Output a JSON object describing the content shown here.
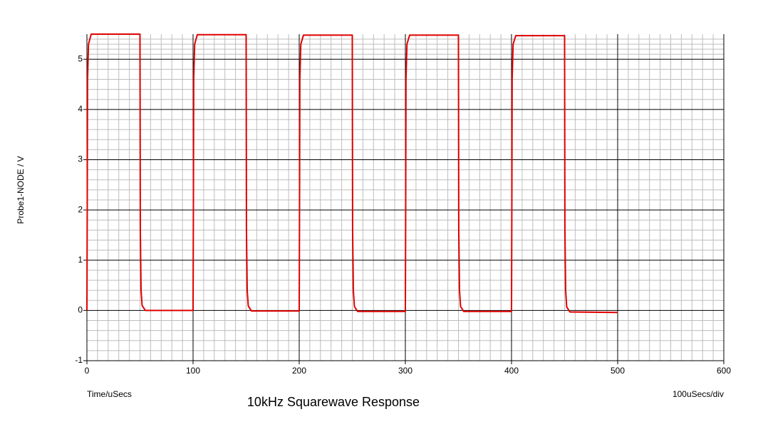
{
  "chart_data": {
    "type": "line",
    "title": "10kHz Squarewave Response",
    "y_label": "Probe1-NODE / V",
    "x_label": "Time/uSecs",
    "x_scale_label": "100uSecs/div",
    "xlim": [
      0,
      600
    ],
    "xticks": [
      0,
      100,
      200,
      300,
      400,
      500,
      600
    ],
    "ylim": [
      -1,
      5.5
    ],
    "yticks": [
      -1,
      0,
      1,
      2,
      3,
      4,
      5
    ],
    "grid": true,
    "x": [
      0,
      0.3,
      0.6,
      1.5,
      4,
      50,
      50.3,
      51,
      52,
      55,
      100,
      100.3,
      100.6,
      101.5,
      104,
      150,
      150.3,
      151,
      152,
      155,
      200,
      200.3,
      200.6,
      201.5,
      204,
      250,
      250.3,
      251,
      252,
      255,
      300,
      300.3,
      300.6,
      301.5,
      304,
      350,
      350.3,
      351,
      352,
      355,
      400,
      400.3,
      400.6,
      401.5,
      404,
      450,
      450.3,
      451,
      452,
      455,
      500
    ],
    "series": [
      {
        "color": "#e00000",
        "values": [
          0,
          2.0,
          4.6,
          5.3,
          5.5,
          5.5,
          1.6,
          0.4,
          0.1,
          0.0,
          0.0,
          2.0,
          4.6,
          5.3,
          5.49,
          5.49,
          1.6,
          0.4,
          0.09,
          -0.01,
          -0.01,
          2.0,
          4.6,
          5.3,
          5.48,
          5.48,
          1.6,
          0.4,
          0.08,
          -0.02,
          -0.02,
          2.0,
          4.6,
          5.3,
          5.48,
          5.48,
          1.6,
          0.4,
          0.08,
          -0.02,
          -0.02,
          2.0,
          4.6,
          5.3,
          5.47,
          5.47,
          1.6,
          0.4,
          0.07,
          -0.03,
          -0.04
        ]
      }
    ]
  }
}
